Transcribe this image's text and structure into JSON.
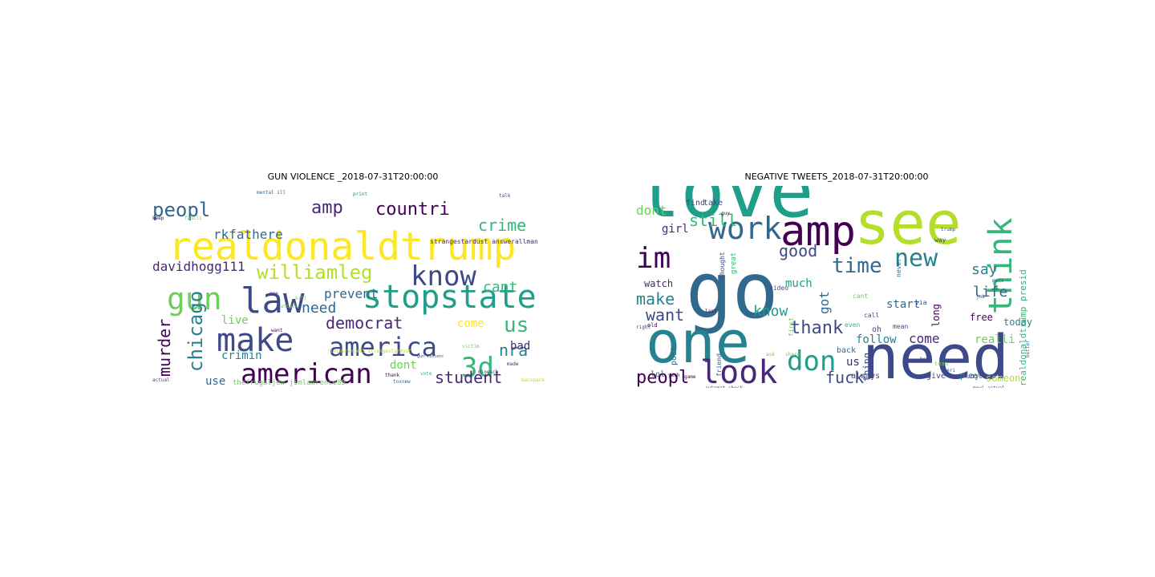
{
  "palette": [
    "#440154",
    "#482878",
    "#3e4989",
    "#31688e",
    "#26828e",
    "#1f9e89",
    "#35b779",
    "#6ece58",
    "#b5de2b",
    "#fde725"
  ],
  "clouds": [
    {
      "title": "GUN VIOLENCE _2018-07-31T20:00:00",
      "words": [
        {
          "t": "realdonaldtrump",
          "c": "#fde725",
          "fs": 48
        },
        {
          "t": "stopstate",
          "c": "#1f9e89",
          "fs": 40
        },
        {
          "t": "law",
          "c": "#3e4989",
          "fs": 44
        },
        {
          "t": "make",
          "c": "#3e4989",
          "fs": 40
        },
        {
          "t": "american",
          "c": "#440154",
          "fs": 34
        },
        {
          "t": "america",
          "c": "#3e4989",
          "fs": 32
        },
        {
          "t": "know",
          "c": "#3e4989",
          "fs": 34
        },
        {
          "t": "gun",
          "c": "#6ece58",
          "fs": 38
        },
        {
          "t": "chicago",
          "c": "#26828e",
          "fs": 24
        },
        {
          "t": "williamleg",
          "c": "#b5de2b",
          "fs": 24
        },
        {
          "t": "3d",
          "c": "#35b779",
          "fs": 34
        },
        {
          "t": "us",
          "c": "#35b779",
          "fs": 26
        },
        {
          "t": "peopl",
          "c": "#31688e",
          "fs": 24
        },
        {
          "t": "countri",
          "c": "#440154",
          "fs": 22
        },
        {
          "t": "amp",
          "c": "#482878",
          "fs": 22
        },
        {
          "t": "crime",
          "c": "#35b779",
          "fs": 20
        },
        {
          "t": "democrat",
          "c": "#482878",
          "fs": 20
        },
        {
          "t": "need",
          "c": "#31688e",
          "fs": 18
        },
        {
          "t": "student",
          "c": "#482878",
          "fs": 20
        },
        {
          "t": "murder",
          "c": "#440154",
          "fs": 20
        },
        {
          "t": "nra",
          "c": "#26828e",
          "fs": 20
        },
        {
          "t": "cant",
          "c": "#35b779",
          "fs": 18
        },
        {
          "t": "davidhogg111",
          "c": "#482878",
          "fs": 16
        },
        {
          "t": "rkfathere",
          "c": "#31688e",
          "fs": 16
        },
        {
          "t": "prevent",
          "c": "#31688e",
          "fs": 16
        },
        {
          "t": "crimin",
          "c": "#26828e",
          "fs": 14
        },
        {
          "t": "live",
          "c": "#6ece58",
          "fs": 14
        },
        {
          "t": "bad",
          "c": "#482878",
          "fs": 14
        },
        {
          "t": "come",
          "c": "#fde725",
          "fs": 14
        },
        {
          "t": "dont",
          "c": "#6ece58",
          "fs": 14
        },
        {
          "t": "use",
          "c": "#31688e",
          "fs": 14
        },
        {
          "t": "thefrugaljew jimlawrence85",
          "c": "#6ece58",
          "fs": 9
        },
        {
          "t": "strangestardust answerallman",
          "c": "#482878",
          "fs": 8
        },
        {
          "t": "jimlawrence85 strangestardust",
          "c": "#b5de2b",
          "fs": 6
        },
        {
          "t": "mental ill",
          "c": "#31688e",
          "fs": 6
        },
        {
          "t": "talk",
          "c": "#3e4989",
          "fs": 6
        },
        {
          "t": "print",
          "c": "#26828e",
          "fs": 6
        },
        {
          "t": "attack",
          "c": "#6ece58",
          "fs": 6
        },
        {
          "t": "famili",
          "c": "#6ece58",
          "fs": 6
        },
        {
          "t": "keep",
          "c": "#440154",
          "fs": 6
        },
        {
          "t": "victim",
          "c": "#6ece58",
          "fs": 6
        },
        {
          "t": "dioesch",
          "c": "#482878",
          "fs": 6
        },
        {
          "t": "toxnew",
          "c": "#31688e",
          "fs": 6
        },
        {
          "t": "vote",
          "c": "#35b779",
          "fs": 6
        },
        {
          "t": "thank",
          "c": "#440154",
          "fs": 6
        },
        {
          "t": "made",
          "c": "#482878",
          "fs": 6
        },
        {
          "t": "backpack",
          "c": "#b5de2b",
          "fs": 6
        },
        {
          "t": "actual",
          "c": "#3e4989",
          "fs": 6
        },
        {
          "t": "gun violenc",
          "c": "#3e4989",
          "fs": 5
        },
        {
          "t": "one",
          "c": "#3e4989",
          "fs": 6
        },
        {
          "t": "want",
          "c": "#440154",
          "fs": 6
        },
        {
          "t": "kill",
          "c": "#6ece58",
          "fs": 6
        }
      ]
    },
    {
      "title": "NEGATIVE TWEETS_2018-07-31T20:00:00",
      "words": [
        {
          "t": "love",
          "c": "#1f9e89",
          "fs": 92
        },
        {
          "t": "go",
          "c": "#31688e",
          "fs": 96
        },
        {
          "t": "one",
          "c": "#26828e",
          "fs": 72
        },
        {
          "t": "need",
          "c": "#3e4989",
          "fs": 76
        },
        {
          "t": "see",
          "c": "#b5de2b",
          "fs": 74
        },
        {
          "t": "amp",
          "c": "#440154",
          "fs": 52
        },
        {
          "t": "think",
          "c": "#35b779",
          "fs": 40
        },
        {
          "t": "look",
          "c": "#482878",
          "fs": 40
        },
        {
          "t": "work",
          "c": "#31688e",
          "fs": 38
        },
        {
          "t": "im",
          "c": "#440154",
          "fs": 36
        },
        {
          "t": "don",
          "c": "#1f9e89",
          "fs": 34
        },
        {
          "t": "new",
          "c": "#26828e",
          "fs": 30
        },
        {
          "t": "time",
          "c": "#31688e",
          "fs": 26
        },
        {
          "t": "thank",
          "c": "#3e4989",
          "fs": 22
        },
        {
          "t": "peopl",
          "c": "#440154",
          "fs": 22
        },
        {
          "t": "good",
          "c": "#3e4989",
          "fs": 20
        },
        {
          "t": "fuck",
          "c": "#3e4989",
          "fs": 20
        },
        {
          "t": "still",
          "c": "#35b779",
          "fs": 20
        },
        {
          "t": "make",
          "c": "#26828e",
          "fs": 20
        },
        {
          "t": "want",
          "c": "#3e4989",
          "fs": 20
        },
        {
          "t": "know",
          "c": "#1f9e89",
          "fs": 18
        },
        {
          "t": "say",
          "c": "#26828e",
          "fs": 18
        },
        {
          "t": "life",
          "c": "#31688e",
          "fs": 18
        },
        {
          "t": "realdonaldtrump presid",
          "c": "#35b779",
          "fs": 11
        },
        {
          "t": "dont",
          "c": "#6ece58",
          "fs": 16
        },
        {
          "t": "girl",
          "c": "#482878",
          "fs": 14
        },
        {
          "t": "start",
          "c": "#31688e",
          "fs": 14
        },
        {
          "t": "come",
          "c": "#482878",
          "fs": 16
        },
        {
          "t": "follow",
          "c": "#26828e",
          "fs": 14
        },
        {
          "t": "realli",
          "c": "#6ece58",
          "fs": 14
        },
        {
          "t": "much",
          "c": "#1f9e89",
          "fs": 14
        },
        {
          "t": "today",
          "c": "#26828e",
          "fs": 12
        },
        {
          "t": "watch",
          "c": "#482878",
          "fs": 12
        },
        {
          "t": "long",
          "c": "#440154",
          "fs": 12
        },
        {
          "t": "free",
          "c": "#440154",
          "fs": 12
        },
        {
          "t": "thing",
          "c": "#3e4989",
          "fs": 12
        },
        {
          "t": "someon",
          "c": "#b5de2b",
          "fs": 12
        },
        {
          "t": "always",
          "c": "#3e4989",
          "fs": 10
        },
        {
          "t": "give",
          "c": "#3e4989",
          "fs": 10
        },
        {
          "t": "play",
          "c": "#26828e",
          "fs": 10
        },
        {
          "t": "feel",
          "c": "#3e4989",
          "fs": 10
        },
        {
          "t": "find",
          "c": "#3e4989",
          "fs": 10
        },
        {
          "t": "take",
          "c": "#3e4989",
          "fs": 10
        },
        {
          "t": "us",
          "c": "#482878",
          "fs": 14
        },
        {
          "t": "got",
          "c": "#31688e",
          "fs": 16
        },
        {
          "t": "back",
          "c": "#31688e",
          "fs": 10
        },
        {
          "t": "call",
          "c": "#3e4989",
          "fs": 8
        },
        {
          "t": "oh",
          "c": "#3e4989",
          "fs": 10
        },
        {
          "t": "post",
          "c": "#31688e",
          "fs": 10
        },
        {
          "t": "lol",
          "c": "#31688e",
          "fs": 10
        },
        {
          "t": "friend",
          "c": "#31688e",
          "fs": 8
        },
        {
          "t": "video",
          "c": "#3e4989",
          "fs": 8
        },
        {
          "t": "way",
          "c": "#3e4989",
          "fs": 8
        },
        {
          "t": "thought",
          "c": "#3e4989",
          "fs": 8
        },
        {
          "t": "trump",
          "c": "#3e4989",
          "fs": 6
        },
        {
          "t": "never",
          "c": "#31688e",
          "fs": 8
        },
        {
          "t": "right",
          "c": "#3e4989",
          "fs": 6
        },
        {
          "t": "mean",
          "c": "#3e4989",
          "fs": 8
        },
        {
          "t": "even",
          "c": "#35b779",
          "fs": 8
        },
        {
          "t": "cant",
          "c": "#6ece58",
          "fs": 8
        },
        {
          "t": "great",
          "c": "#35b779",
          "fs": 9
        },
        {
          "t": "first",
          "c": "#6ece58",
          "fs": 8
        },
        {
          "t": "job",
          "c": "#3e4989",
          "fs": 6
        },
        {
          "t": "made",
          "c": "#31688e",
          "fs": 6
        },
        {
          "t": "better",
          "c": "#31688e",
          "fs": 6
        },
        {
          "t": "ask",
          "c": "#6ece58",
          "fs": 6
        },
        {
          "t": "team",
          "c": "#6ece58",
          "fs": 7
        },
        {
          "t": "hope",
          "c": "#3e4989",
          "fs": 6
        },
        {
          "t": "share",
          "c": "#6ece58",
          "fs": 6
        },
        {
          "t": "via",
          "c": "#3e4989",
          "fs": 8
        },
        {
          "t": "game",
          "c": "#440154",
          "fs": 6
        },
        {
          "t": "yeah",
          "c": "#440154",
          "fs": 6
        },
        {
          "t": "old",
          "c": "#440154",
          "fs": 7
        },
        {
          "t": "last",
          "c": "#440154",
          "fs": 6
        },
        {
          "t": "guy",
          "c": "#440154",
          "fs": 6
        },
        {
          "t": "everi",
          "c": "#3e4989",
          "fs": 6
        },
        {
          "t": "movi actual",
          "c": "#3e4989",
          "fs": 6
        },
        {
          "t": "automat check",
          "c": "#3e4989",
          "fs": 6
        }
      ]
    }
  ]
}
